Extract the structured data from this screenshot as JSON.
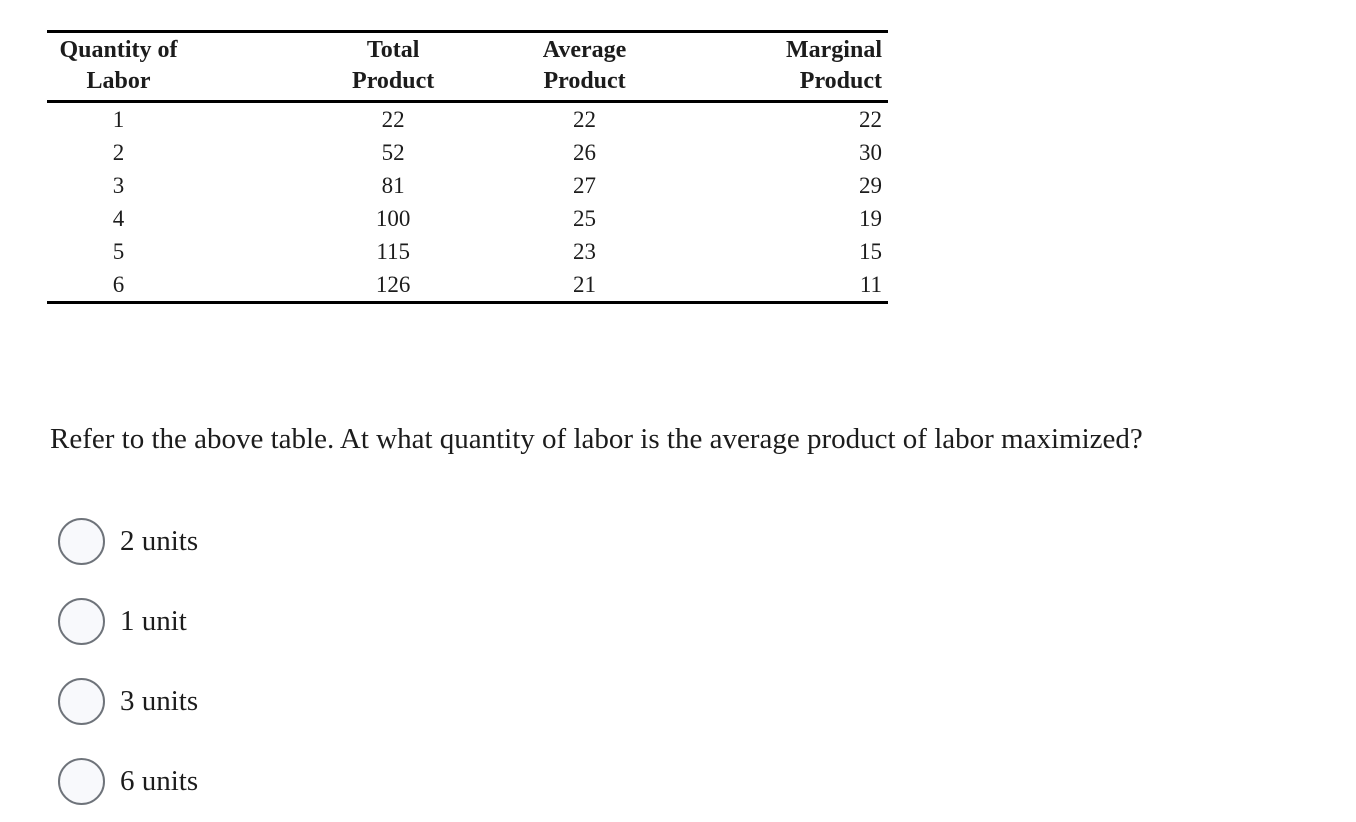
{
  "table": {
    "headers": [
      {
        "line1": "Quantity of",
        "line2": "Labor"
      },
      {
        "line1": "Total",
        "line2": "Product"
      },
      {
        "line1": "Average",
        "line2": "Product"
      },
      {
        "line1": "Marginal",
        "line2": "Product"
      }
    ],
    "rows": [
      [
        "1",
        "22",
        "22",
        "22"
      ],
      [
        "2",
        "52",
        "26",
        "30"
      ],
      [
        "3",
        "81",
        "27",
        "29"
      ],
      [
        "4",
        "100",
        "25",
        "19"
      ],
      [
        "5",
        "115",
        "23",
        "15"
      ],
      [
        "6",
        "126",
        "21",
        "11"
      ]
    ]
  },
  "question": {
    "text": "Refer to the above table. At what quantity of labor is the average product of labor maximized?"
  },
  "options": [
    {
      "label": "2 units",
      "selected": false
    },
    {
      "label": "1 unit",
      "selected": false
    },
    {
      "label": "3 units",
      "selected": false
    },
    {
      "label": "6 units",
      "selected": false
    }
  ],
  "colors": {
    "background": "#ffffff",
    "text": "#1c1c1c",
    "table_border": "#000000",
    "radio_border": "#6e737a",
    "radio_fill": "#f8f9fc"
  }
}
